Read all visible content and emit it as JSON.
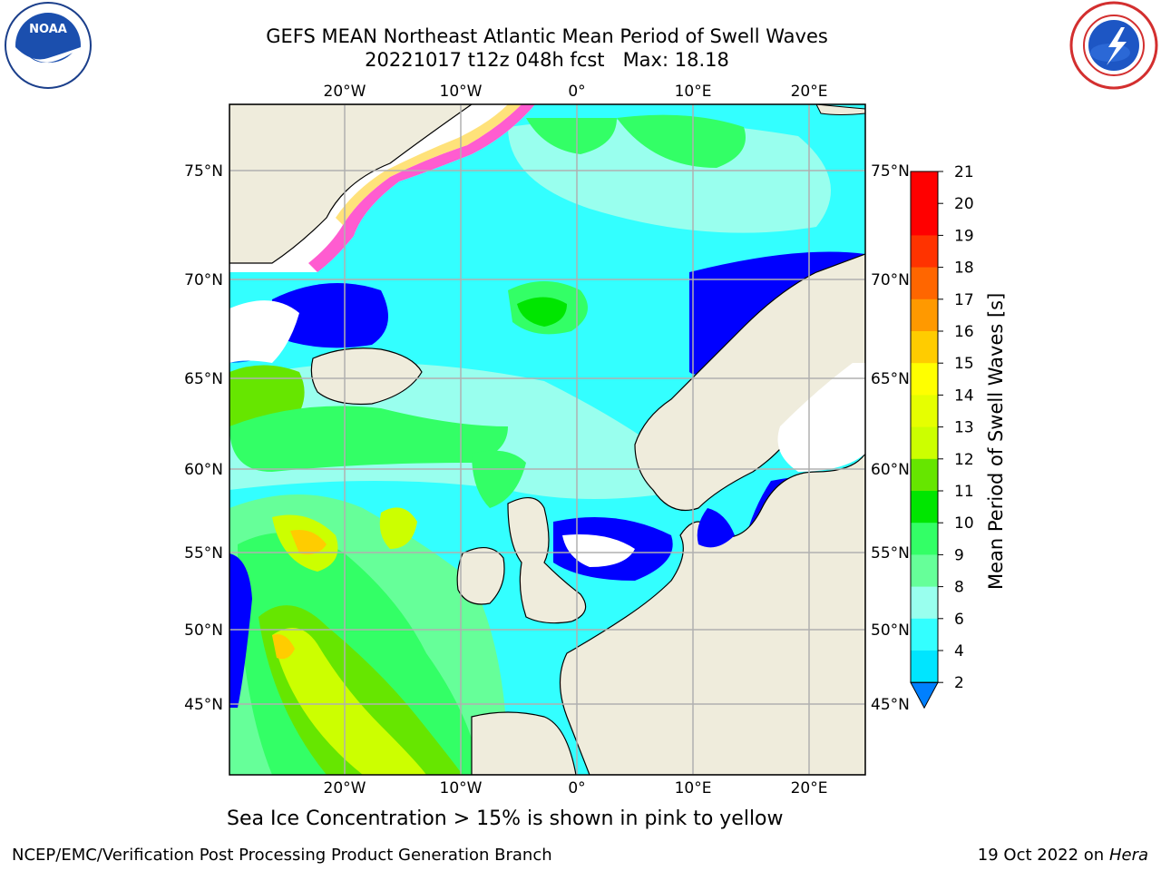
{
  "header": {
    "title_line1": "GEFS MEAN Northeast Atlantic Mean Period of Swell Waves",
    "title_line2": "20221017 t12z 048h fcst   Max: 18.18"
  },
  "logos": {
    "left": "noaa-logo",
    "right": "nws-logo"
  },
  "map": {
    "lon_labels": [
      "20°W",
      "10°W",
      "0°",
      "10°E",
      "20°E"
    ],
    "lat_labels": [
      "75°N",
      "70°N",
      "65°N",
      "60°N",
      "55°N",
      "50°N",
      "45°N"
    ],
    "colors": {
      "land": "#efecdc",
      "ice_pink": "#ff5cd0",
      "ice_yellow": "#ffe27a",
      "grid": "#b0b0b0"
    }
  },
  "colorbar": {
    "title": "Mean Period of Swell Waves [s]",
    "ticks": [
      "21",
      "20",
      "19",
      "18",
      "17",
      "16",
      "15",
      "14",
      "13",
      "12",
      "11",
      "10",
      "9",
      "8",
      "6",
      "4",
      "2"
    ],
    "levels": [
      {
        "min": 19,
        "max": 21,
        "color": "#ff0000"
      },
      {
        "min": 18,
        "max": 19,
        "color": "#ff3300"
      },
      {
        "min": 17,
        "max": 18,
        "color": "#ff6600"
      },
      {
        "min": 16,
        "max": 17,
        "color": "#ff9900"
      },
      {
        "min": 15,
        "max": 16,
        "color": "#ffcc00"
      },
      {
        "min": 14,
        "max": 15,
        "color": "#ffff00"
      },
      {
        "min": 13,
        "max": 14,
        "color": "#e6ff00"
      },
      {
        "min": 12,
        "max": 13,
        "color": "#ccff00"
      },
      {
        "min": 11,
        "max": 12,
        "color": "#66e600"
      },
      {
        "min": 10,
        "max": 11,
        "color": "#00e600"
      },
      {
        "min": 9,
        "max": 10,
        "color": "#33ff66"
      },
      {
        "min": 8,
        "max": 9,
        "color": "#66ff99"
      },
      {
        "min": 6,
        "max": 8,
        "color": "#99ffee"
      },
      {
        "min": 4,
        "max": 6,
        "color": "#33ffff"
      },
      {
        "min": 2,
        "max": 4,
        "color": "#00e5ff"
      },
      {
        "min": 0,
        "max": 2,
        "color": "#0080ff"
      }
    ]
  },
  "footer": {
    "sea_ice_note": "Sea Ice Concentration > 15% is shown in pink to yellow",
    "credit": "NCEP/EMC/Verification Post Processing Product Generation Branch",
    "date_prefix": "19 Oct 2022 on ",
    "host": "Hera"
  }
}
